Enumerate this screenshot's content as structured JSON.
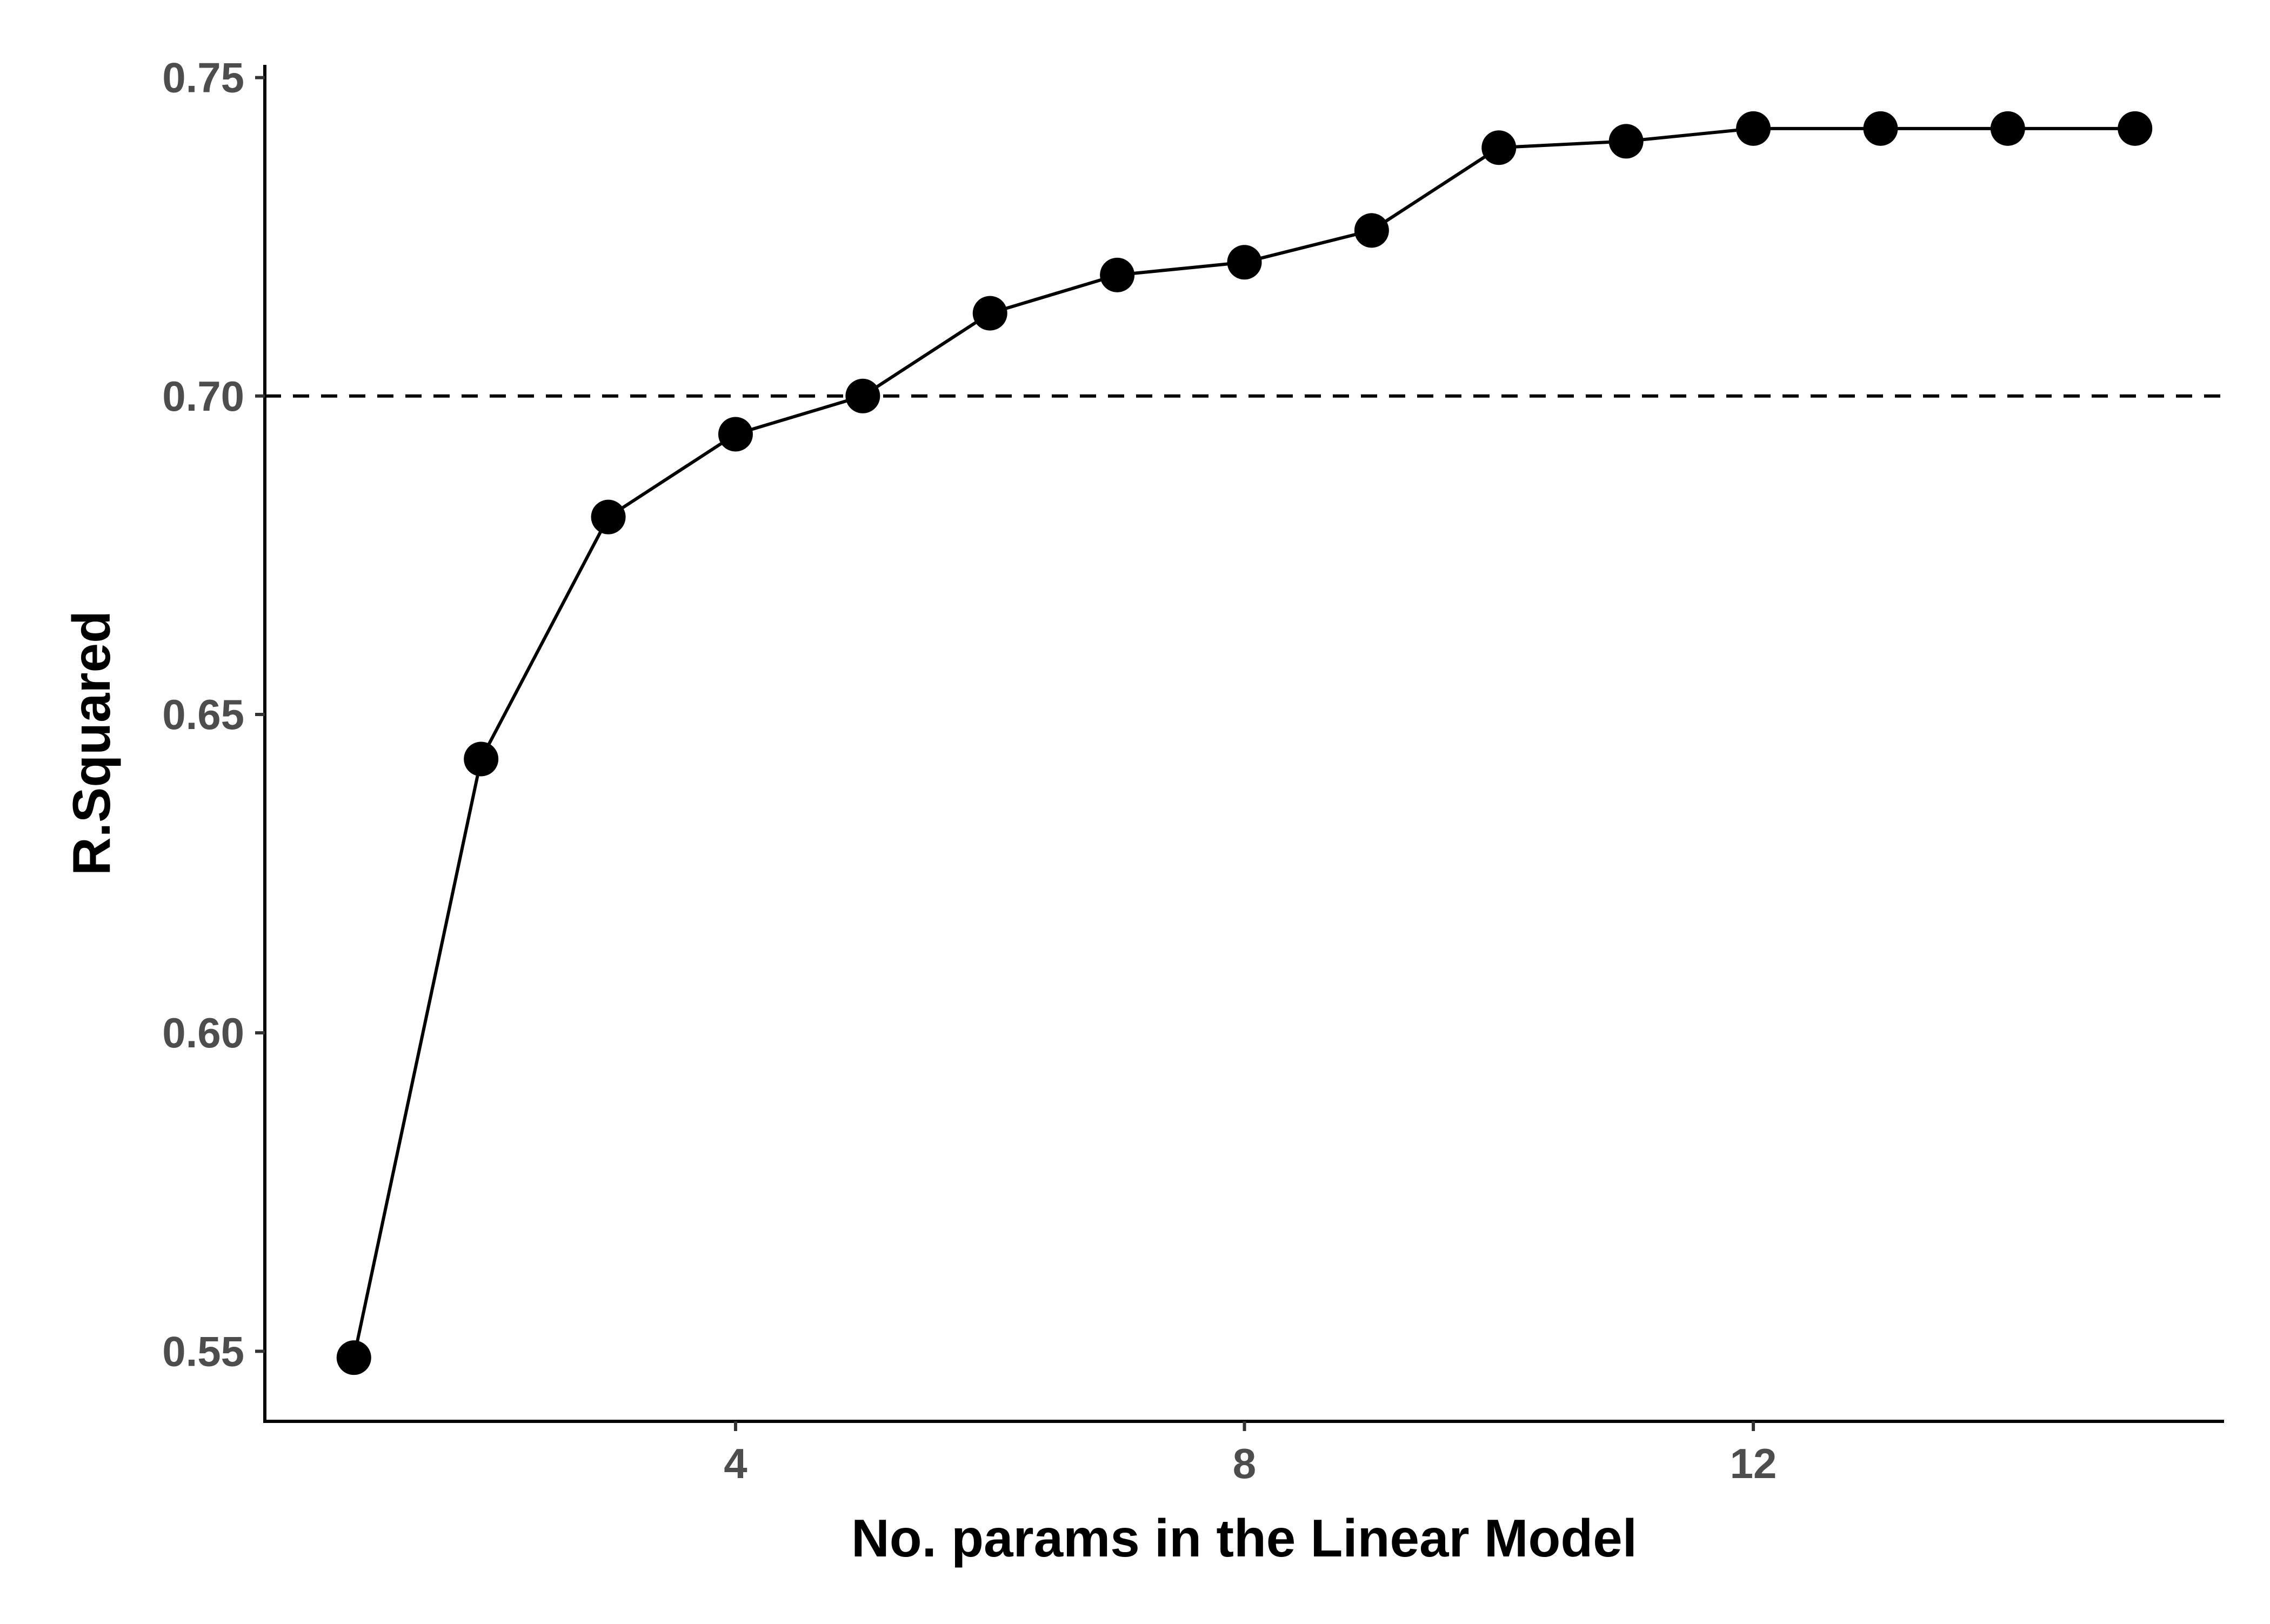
{
  "chart_data": {
    "type": "line",
    "title": "",
    "xlabel": "No. params in the Linear Model",
    "ylabel": "R.Squared",
    "x": [
      1,
      2,
      3,
      4,
      5,
      6,
      7,
      8,
      9,
      10,
      11,
      12,
      13,
      14,
      15
    ],
    "series": [
      {
        "values": [
          0.549,
          0.643,
          0.681,
          0.694,
          0.7,
          0.713,
          0.719,
          0.721,
          0.726,
          0.739,
          0.74,
          0.742,
          0.742,
          0.742,
          0.742
        ]
      }
    ],
    "xlim": [
      0.3,
      15.7
    ],
    "ylim": [
      0.539,
      0.752
    ],
    "xticks": [
      {
        "value": 4,
        "label": "4"
      },
      {
        "value": 8,
        "label": "8"
      },
      {
        "value": 12,
        "label": "12"
      }
    ],
    "yticks": [
      {
        "value": 0.55,
        "label": "0.55"
      },
      {
        "value": 0.6,
        "label": "0.60"
      },
      {
        "value": 0.65,
        "label": "0.65"
      },
      {
        "value": 0.7,
        "label": "0.70"
      },
      {
        "value": 0.75,
        "label": "0.75"
      }
    ],
    "reference_line": {
      "orientation": "horizontal",
      "y": 0.7,
      "style": "dashed"
    },
    "grid": false,
    "legend": "none",
    "colors": {
      "line": "#000000",
      "points": "#000000",
      "tick_text": "#4d4d4d"
    }
  }
}
